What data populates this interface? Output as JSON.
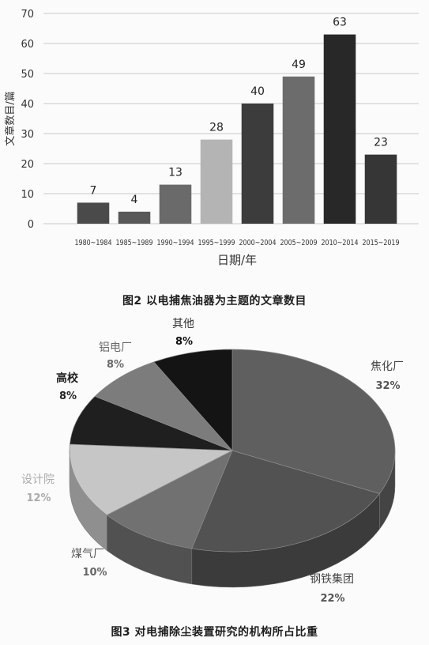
{
  "chart_data": [
    {
      "type": "bar",
      "caption": "图2 以电捕焦油器为主题的文章数目",
      "xlabel": "日期/年",
      "ylabel": "文章数目/篇",
      "categories": [
        "1980~1984",
        "1985~1989",
        "1990~1994",
        "1995~1999",
        "2000~2004",
        "2005~2009",
        "2010~2014",
        "2015~2019"
      ],
      "values": [
        7,
        4,
        13,
        28,
        40,
        49,
        63,
        23
      ],
      "ylim": [
        0,
        70
      ],
      "yticks": [
        0,
        10,
        20,
        30,
        40,
        50,
        60,
        70
      ],
      "grid": true,
      "legend": false,
      "colors": [
        "#4a4a4a",
        "#585858",
        "#6a6a6a",
        "#b4b4b4",
        "#3c3c3c",
        "#6c6c6c",
        "#282828",
        "#363636"
      ]
    },
    {
      "type": "pie",
      "three_d": true,
      "caption": "图3 对电捕除尘装置研究的机构所占比重",
      "labels": [
        "焦化厂",
        "钢铁集团",
        "煤气厂",
        "设计院",
        "高校",
        "铝电厂",
        "其他"
      ],
      "values": [
        32,
        22,
        10,
        12,
        8,
        8,
        8
      ],
      "value_labels": [
        "32%",
        "22%",
        "10%",
        "12%",
        "8%",
        "8%",
        "8%"
      ],
      "colors": [
        "#5f5f5f",
        "#525252",
        "#717171",
        "#c6c6c6",
        "#1f1f1f",
        "#7c7c7c",
        "#141414"
      ]
    }
  ]
}
